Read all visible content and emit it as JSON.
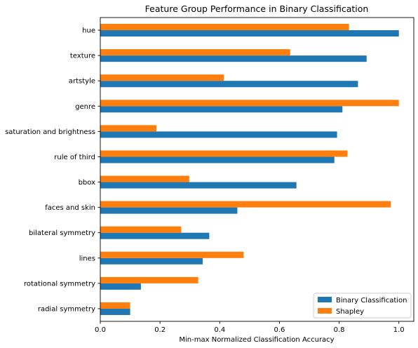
{
  "chart_data": {
    "type": "bar",
    "orientation": "horizontal",
    "title": "Feature Group Performance in Binary Classification",
    "xlabel": "Min-max Normalized Classification Accuracy",
    "ylabel": "",
    "xlim": [
      0,
      1.05
    ],
    "xticks": [
      "0.0",
      "0.2",
      "0.4",
      "0.6",
      "0.8",
      "1.0"
    ],
    "grid": false,
    "legend_position": "bottom-right",
    "categories": [
      "hue",
      "texture",
      "artstyle",
      "genre",
      "saturation and brightness",
      "rule of third",
      "bbox",
      "faces and skin",
      "bilateral symmetry",
      "lines",
      "rotational symmetry",
      "radial symmetry"
    ],
    "series": [
      {
        "name": "Binary Classification",
        "color": "#1f77b4",
        "values": [
          1.0,
          0.892,
          0.863,
          0.811,
          0.793,
          0.784,
          0.657,
          0.459,
          0.365,
          0.343,
          0.136,
          0.1
        ]
      },
      {
        "name": "Shapley",
        "color": "#ff7f0e",
        "values": [
          0.833,
          0.636,
          0.414,
          1.0,
          0.188,
          0.828,
          0.298,
          0.973,
          0.271,
          0.48,
          0.328,
          0.1
        ]
      }
    ]
  }
}
